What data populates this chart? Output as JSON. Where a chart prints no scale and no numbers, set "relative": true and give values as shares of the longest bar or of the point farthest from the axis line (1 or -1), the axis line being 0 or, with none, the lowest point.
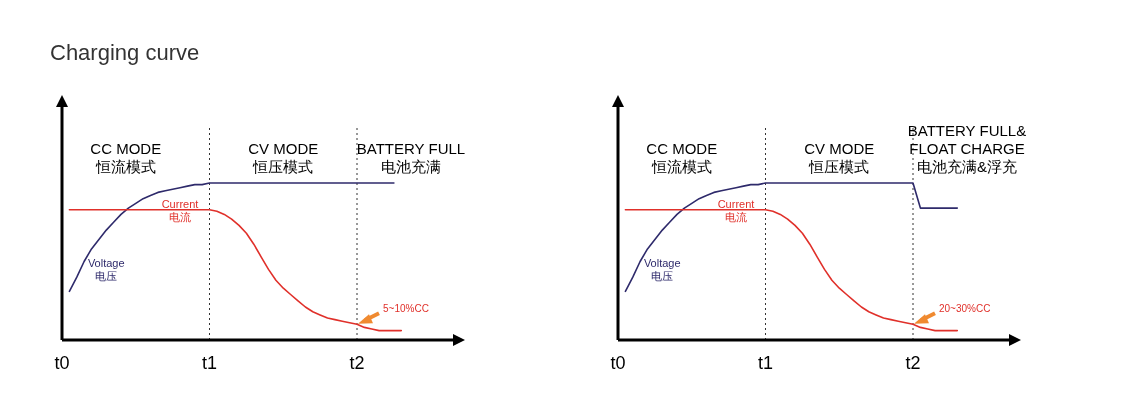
{
  "chart_data": [
    {
      "type": "line",
      "title": "Charging curve",
      "relative": true,
      "categories": [
        "t0",
        null,
        null,
        null,
        null,
        null,
        null,
        null,
        null,
        null,
        null,
        null,
        null,
        null,
        null,
        null,
        null,
        null,
        null,
        null,
        "t1",
        null,
        null,
        null,
        null,
        null,
        null,
        null,
        null,
        null,
        null,
        null,
        null,
        null,
        null,
        null,
        null,
        null,
        null,
        null,
        "t2",
        null,
        null,
        null,
        null,
        null,
        null
      ],
      "annotations": [
        "CC MODE\n恒流模式",
        "CV MODE\n恒压模式",
        "BATTERY FULL\n电池充满",
        {
          "text": "5~10%CC",
          "x": "t2",
          "y": 0.1
        }
      ],
      "ref_lines": [
        {
          "axis": "x",
          "value": "t1",
          "line_style": "dotted",
          "color": "#333333"
        },
        {
          "axis": "x",
          "value": "t2",
          "line_style": "dotted",
          "color": "#333333"
        }
      ],
      "series": [
        {
          "name": "Voltage\n电压",
          "color": "#2e2a6b",
          "values": [
            null,
            0.31,
            0.4,
            0.5,
            0.58,
            0.64,
            0.7,
            0.75,
            0.8,
            0.84,
            0.87,
            0.9,
            0.92,
            0.94,
            0.95,
            0.96,
            0.97,
            0.98,
            0.99,
            0.99,
            1,
            1,
            1,
            1,
            1,
            1,
            1,
            1,
            1,
            1,
            1,
            1,
            1,
            1,
            1,
            1,
            1,
            1,
            1,
            1,
            1,
            1,
            1,
            1,
            1,
            1,
            null
          ]
        },
        {
          "name": "Current\n电流",
          "color": "#e0302a",
          "values": [
            null,
            0.83,
            0.83,
            0.83,
            0.83,
            0.83,
            0.83,
            0.83,
            0.83,
            0.83,
            0.83,
            0.83,
            0.83,
            0.83,
            0.83,
            0.83,
            0.83,
            0.83,
            0.83,
            0.83,
            0.83,
            0.82,
            0.8,
            0.77,
            0.73,
            0.68,
            0.61,
            0.53,
            0.45,
            0.38,
            0.33,
            0.29,
            0.25,
            0.21,
            0.18,
            0.16,
            0.14,
            0.13,
            0.12,
            0.11,
            0.1,
            0.08,
            0.07,
            0.06,
            0.06,
            0.06,
            0.06
          ]
        }
      ]
    },
    {
      "type": "line",
      "relative": true,
      "categories": [
        "t0",
        null,
        null,
        null,
        null,
        null,
        null,
        null,
        null,
        null,
        null,
        null,
        null,
        null,
        null,
        null,
        null,
        null,
        null,
        null,
        "t1",
        null,
        null,
        null,
        null,
        null,
        null,
        null,
        null,
        null,
        null,
        null,
        null,
        null,
        null,
        null,
        null,
        null,
        null,
        null,
        "t2",
        null,
        null,
        null,
        null,
        null,
        null
      ],
      "annotations": [
        "CC MODE\n恒流模式",
        "CV MODE\n恒压模式",
        "BATTERY FULL&\nFLOAT CHARGE\n电池充满&浮充",
        {
          "text": "20~30%CC",
          "x": "t2",
          "y": 0.1
        }
      ],
      "ref_lines": [
        {
          "axis": "x",
          "value": "t1",
          "line_style": "dotted",
          "color": "#333333"
        },
        {
          "axis": "x",
          "value": "t2",
          "line_style": "dotted",
          "color": "#333333"
        }
      ],
      "series": [
        {
          "name": "Voltage\n电压",
          "color": "#2e2a6b",
          "values": [
            null,
            0.31,
            0.4,
            0.5,
            0.58,
            0.64,
            0.7,
            0.75,
            0.8,
            0.84,
            0.87,
            0.9,
            0.92,
            0.94,
            0.95,
            0.96,
            0.97,
            0.98,
            0.99,
            0.99,
            1,
            1,
            1,
            1,
            1,
            1,
            1,
            1,
            1,
            1,
            1,
            1,
            1,
            1,
            1,
            1,
            1,
            1,
            1,
            1,
            1,
            0.84,
            0.84,
            0.84,
            0.84,
            0.84,
            0.84
          ]
        },
        {
          "name": "Current\n电流",
          "color": "#e0302a",
          "values": [
            null,
            0.83,
            0.83,
            0.83,
            0.83,
            0.83,
            0.83,
            0.83,
            0.83,
            0.83,
            0.83,
            0.83,
            0.83,
            0.83,
            0.83,
            0.83,
            0.83,
            0.83,
            0.83,
            0.83,
            0.83,
            0.82,
            0.8,
            0.77,
            0.73,
            0.68,
            0.61,
            0.53,
            0.45,
            0.38,
            0.33,
            0.29,
            0.25,
            0.21,
            0.18,
            0.16,
            0.14,
            0.13,
            0.12,
            0.11,
            0.1,
            0.08,
            0.07,
            0.06,
            0.06,
            0.06,
            0.06
          ]
        }
      ]
    }
  ]
}
